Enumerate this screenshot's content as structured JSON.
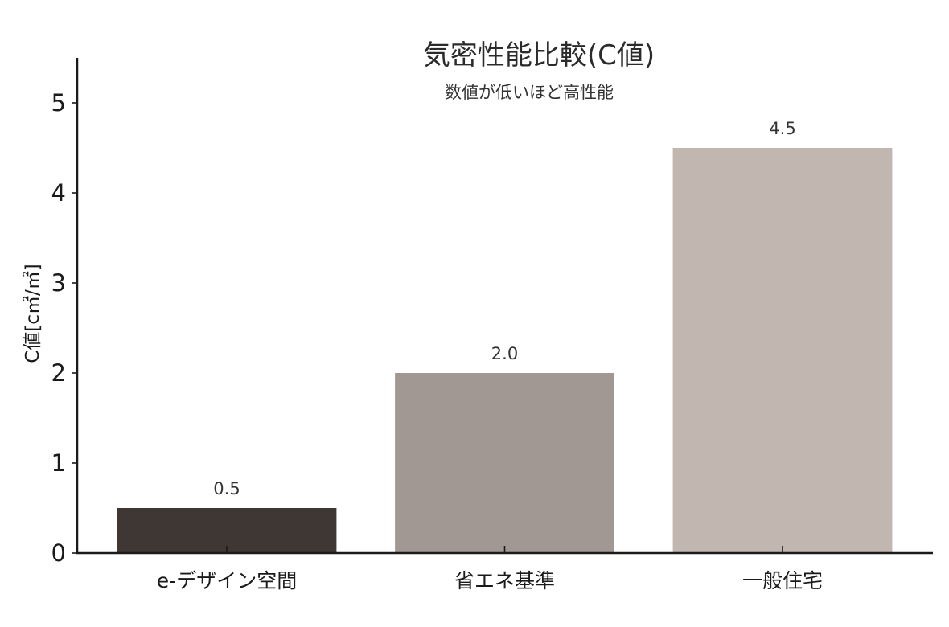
{
  "chart_data": {
    "type": "bar",
    "title": "気密性能比較(C値)",
    "subtitle": "数値が低いほど高性能",
    "xlabel": "",
    "ylabel": "C値[c㎡/㎡]",
    "categories": [
      "e-デザイン空間",
      "省エネ基準",
      "一般住宅"
    ],
    "values": [
      0.5,
      2.0,
      4.5
    ],
    "value_labels": [
      "0.5",
      "2.0",
      "4.5"
    ],
    "colors": [
      "#3e3733",
      "#a29893",
      "#c1b6b0"
    ],
    "ylim": [
      0,
      5.5
    ],
    "yticks": [
      0,
      1,
      2,
      3,
      4,
      5
    ],
    "grid": false,
    "legend": "none"
  }
}
